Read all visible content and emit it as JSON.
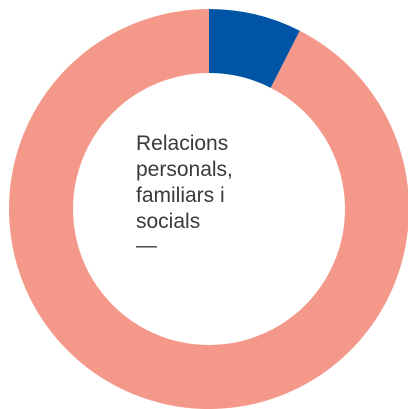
{
  "chart_data": {
    "type": "pie",
    "variant": "donut",
    "title": "",
    "center_label": {
      "lines": [
        "Relacions",
        "personals,",
        "familiars i",
        "socials"
      ],
      "dash": "—"
    },
    "slices": [
      {
        "value": 7.5,
        "color": "#0054a6"
      },
      {
        "value": 92.5,
        "color": "#f4998a"
      }
    ],
    "start_angle_deg": 0,
    "direction": "clockwise",
    "legend": "none"
  }
}
